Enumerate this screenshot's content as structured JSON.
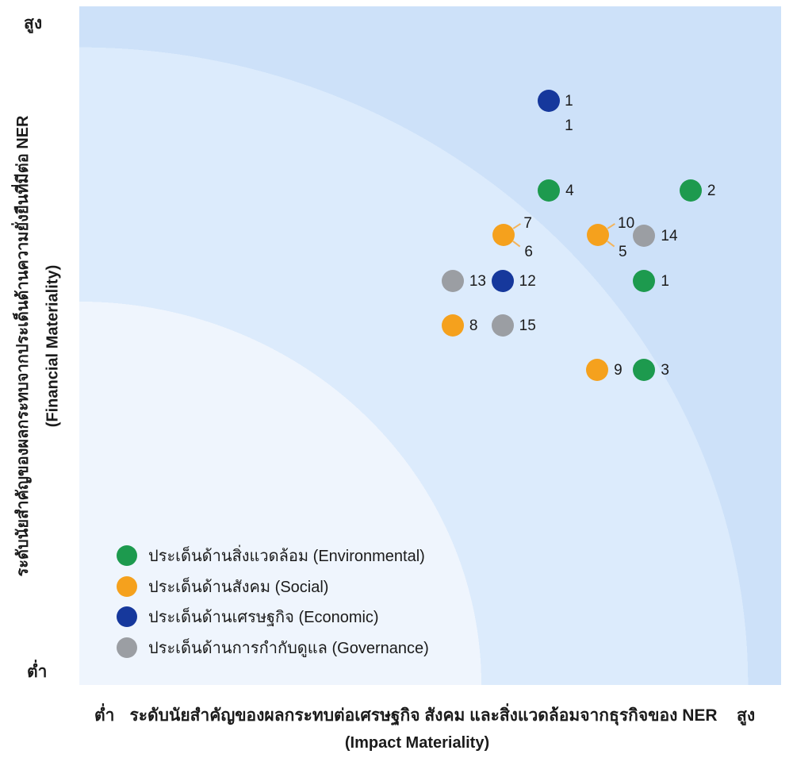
{
  "colors": {
    "environmental": "#1d9a4e",
    "social": "#f5a11d",
    "economic": "#16389c",
    "governance": "#9b9ea3",
    "band_inner": "#eff5fd",
    "band_middle": "#dcebfc",
    "band_outer": "#cde1f9",
    "leader_line": "#f3b45c",
    "text": "#1b1b1b"
  },
  "y_axis": {
    "high_label": "สูง",
    "low_label": "ต่ำ",
    "title_line1": "ระดับนัยสำคัญของผลกระทบจากประเด็นด้านความยั่งยืนที่มีต่อ NER",
    "title_line2": "(Financial Materiality)"
  },
  "x_axis": {
    "low_label": "ต่ำ",
    "high_label": "สูง",
    "title_line1": "ระดับนัยสำคัญของผลกระทบต่อเศรษฐกิจ สังคม และสิ่งแวดล้อมจากธุรกิจของ NER",
    "title_line2": "(Impact Materiality)"
  },
  "legend": [
    {
      "category": "environmental",
      "label": "ประเด็นด้านสิ่งแวดล้อม (Environmental)"
    },
    {
      "category": "social",
      "label": "ประเด็นด้านสังคม (Social)"
    },
    {
      "category": "economic",
      "label": "ประเด็นด้านเศรษฐกิจ (Economic)"
    },
    {
      "category": "governance",
      "label": "ประเด็นด้านการกำกับดูแล (Governance)"
    }
  ],
  "chart_data": {
    "type": "scatter",
    "title": "",
    "xlabel": "ระดับนัยสำคัญของผลกระทบต่อเศรษฐกิจ สังคม และสิ่งแวดล้อมจากธุรกิจของ NER (Impact Materiality)",
    "ylabel": "ระดับนัยสำคัญของผลกระทบจากประเด็นด้านความยั่งยืนที่มีต่อ NER (Financial Materiality)",
    "axis_scale_note": "no numeric ticks; x_pct = impact materiality 0-100 (low-high), y_pct = financial materiality 0-100 (low-high)",
    "background_bands": "three concentric quarter-ellipse bands radiating from the low/low corner",
    "legend_position": "bottom-left inside plot",
    "points": [
      {
        "labels": [
          "1",
          "1"
        ],
        "label_style": "stacked",
        "category": "economic",
        "x_pct": 66.9,
        "y_pct": 86.1
      },
      {
        "labels": [
          "4"
        ],
        "label_style": "right",
        "category": "environmental",
        "x_pct": 66.9,
        "y_pct": 72.9
      },
      {
        "labels": [
          "2"
        ],
        "label_style": "right",
        "category": "environmental",
        "x_pct": 87.1,
        "y_pct": 72.9
      },
      {
        "labels": [
          "7",
          "6"
        ],
        "label_style": "split",
        "category": "social",
        "x_pct": 60.5,
        "y_pct": 66.3
      },
      {
        "labels": [
          "10",
          "5"
        ],
        "label_style": "split",
        "category": "social",
        "x_pct": 73.9,
        "y_pct": 66.3
      },
      {
        "labels": [
          "14"
        ],
        "label_style": "right",
        "category": "governance",
        "x_pct": 80.5,
        "y_pct": 66.2
      },
      {
        "labels": [
          "13"
        ],
        "label_style": "right",
        "category": "governance",
        "x_pct": 53.2,
        "y_pct": 59.5
      },
      {
        "labels": [
          "12"
        ],
        "label_style": "right",
        "category": "economic",
        "x_pct": 60.3,
        "y_pct": 59.5
      },
      {
        "labels": [
          "1"
        ],
        "label_style": "right",
        "category": "environmental",
        "x_pct": 80.5,
        "y_pct": 59.5
      },
      {
        "labels": [
          "8"
        ],
        "label_style": "right",
        "category": "social",
        "x_pct": 53.2,
        "y_pct": 53.0
      },
      {
        "labels": [
          "15"
        ],
        "label_style": "right",
        "category": "governance",
        "x_pct": 60.3,
        "y_pct": 53.0
      },
      {
        "labels": [
          "9"
        ],
        "label_style": "right",
        "category": "social",
        "x_pct": 73.8,
        "y_pct": 46.4
      },
      {
        "labels": [
          "3"
        ],
        "label_style": "right",
        "category": "environmental",
        "x_pct": 80.5,
        "y_pct": 46.4
      }
    ]
  }
}
